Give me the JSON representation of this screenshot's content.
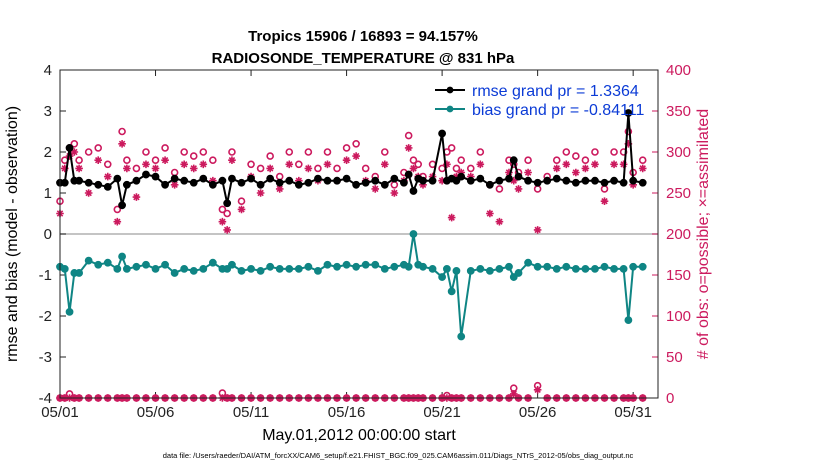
{
  "colors": {
    "rmse": "#000000",
    "bias": "#0f8584",
    "obs": "#cc1a5e",
    "legend_text": "#0b3bd6",
    "zero_line": "#b0b0b0"
  },
  "chart_data": {
    "type": "line",
    "title": "Tropics 15906 / 16893 = 94.157%",
    "subtitle": "RADIOSONDE_TEMPERATURE @ 831 hPa",
    "xlabel": "May.01,2012 00:00:00 start",
    "ylabel_left": "rmse and bias (model - observation)",
    "ylabel_right": "# of obs: o=possible; ×=assimilated",
    "xlim": [
      1,
      32.3
    ],
    "ylim_left": [
      -4,
      4
    ],
    "ylim_right": [
      0,
      400
    ],
    "xticks": [
      1,
      6,
      11,
      16,
      21,
      26,
      31
    ],
    "xtick_labels": [
      "05/01",
      "05/06",
      "05/11",
      "05/16",
      "05/21",
      "05/26",
      "05/31"
    ],
    "yticks_left": [
      -4,
      -3,
      -2,
      -1,
      0,
      1,
      2,
      3,
      4
    ],
    "yticks_right": [
      0,
      50,
      100,
      150,
      200,
      250,
      300,
      350,
      400
    ],
    "legend": [
      {
        "name": "rmse grand pr = 1.3364"
      },
      {
        "name": "bias grand pr = -0.84111"
      }
    ],
    "footer": "data file: /Users/raeder/DAI/ATM_forcXX/CAM6_setup/f.e21.FHIST_BGC.f09_025.CAM6assim.011/Diags_NTrS_2012-05/obs_diag_output.nc",
    "series": [
      {
        "name": "rmse",
        "x": [
          1.0,
          1.25,
          1.5,
          1.75,
          2.0,
          2.5,
          3.0,
          3.5,
          4.0,
          4.25,
          4.5,
          5.0,
          5.5,
          6.0,
          6.5,
          7.0,
          7.5,
          8.0,
          8.5,
          9.0,
          9.5,
          9.75,
          10.0,
          10.5,
          11.0,
          11.5,
          12.0,
          12.5,
          13.0,
          13.5,
          14.0,
          14.5,
          15.0,
          15.5,
          16.0,
          16.5,
          17.0,
          17.5,
          18.0,
          18.5,
          19.0,
          19.25,
          19.5,
          19.75,
          20.0,
          20.5,
          21.0,
          21.25,
          21.5,
          21.75,
          22.0,
          22.5,
          23.0,
          23.5,
          24.0,
          24.5,
          24.75,
          25.0,
          25.5,
          26.0,
          26.5,
          27.0,
          27.5,
          28.0,
          28.5,
          29.0,
          29.5,
          30.0,
          30.5,
          30.75,
          31.0,
          31.5
        ],
        "values": [
          1.25,
          1.25,
          2.1,
          1.3,
          1.3,
          1.25,
          1.2,
          1.15,
          1.35,
          0.7,
          1.2,
          1.3,
          1.45,
          1.4,
          1.2,
          1.35,
          1.3,
          1.25,
          1.35,
          1.2,
          1.3,
          0.75,
          1.35,
          1.25,
          1.35,
          1.2,
          1.35,
          1.25,
          1.3,
          1.2,
          1.25,
          1.35,
          1.3,
          1.3,
          1.35,
          1.2,
          1.25,
          1.3,
          1.2,
          1.35,
          1.25,
          1.45,
          1.05,
          1.35,
          1.3,
          1.3,
          2.45,
          1.3,
          1.35,
          1.3,
          1.4,
          1.3,
          1.35,
          1.2,
          1.3,
          1.35,
          1.8,
          1.4,
          1.3,
          1.25,
          1.3,
          1.35,
          1.3,
          1.25,
          1.3,
          1.3,
          1.25,
          1.3,
          1.25,
          2.95,
          1.3,
          1.25
        ]
      },
      {
        "name": "bias",
        "x": [
          1.0,
          1.25,
          1.5,
          1.75,
          2.0,
          2.5,
          3.0,
          3.5,
          4.0,
          4.25,
          4.5,
          5.0,
          5.5,
          6.0,
          6.5,
          7.0,
          7.5,
          8.0,
          8.5,
          9.0,
          9.5,
          9.75,
          10.0,
          10.5,
          11.0,
          11.5,
          12.0,
          12.5,
          13.0,
          13.5,
          14.0,
          14.5,
          15.0,
          15.5,
          16.0,
          16.5,
          17.0,
          17.5,
          18.0,
          18.5,
          19.0,
          19.25,
          19.5,
          19.75,
          20.0,
          20.5,
          21.0,
          21.25,
          21.5,
          21.75,
          22.0,
          22.5,
          23.0,
          23.5,
          24.0,
          24.5,
          24.75,
          25.0,
          25.5,
          26.0,
          26.5,
          27.0,
          27.5,
          28.0,
          28.5,
          29.0,
          29.5,
          30.0,
          30.5,
          30.75,
          31.0,
          31.5
        ],
        "values": [
          -0.8,
          -0.85,
          -1.9,
          -0.95,
          -0.95,
          -0.65,
          -0.75,
          -0.7,
          -0.85,
          -0.55,
          -0.85,
          -0.8,
          -0.75,
          -0.85,
          -0.75,
          -0.95,
          -0.85,
          -0.9,
          -0.85,
          -0.7,
          -0.85,
          -0.85,
          -0.75,
          -0.9,
          -0.85,
          -0.9,
          -0.8,
          -0.85,
          -0.85,
          -0.85,
          -0.8,
          -0.9,
          -0.75,
          -0.8,
          -0.75,
          -0.8,
          -0.75,
          -0.75,
          -0.85,
          -0.8,
          -0.75,
          -0.8,
          0.0,
          -0.75,
          -0.8,
          -0.85,
          -1.05,
          -0.85,
          -1.4,
          -0.9,
          -2.5,
          -0.9,
          -0.85,
          -0.9,
          -0.85,
          -0.8,
          -1.05,
          -0.95,
          -0.7,
          -0.8,
          -0.8,
          -0.85,
          -0.8,
          -0.85,
          -0.85,
          -0.85,
          -0.8,
          -0.85,
          -0.85,
          -2.1,
          -0.8,
          -0.8
        ]
      },
      {
        "name": "obs_possible",
        "axis": "right",
        "x": [
          1.0,
          1.25,
          1.5,
          1.75,
          2.0,
          2.5,
          3.0,
          3.5,
          4.0,
          4.25,
          4.5,
          5.0,
          5.5,
          6.0,
          6.5,
          7.0,
          7.5,
          8.0,
          8.5,
          9.0,
          9.5,
          9.75,
          10.0,
          10.5,
          11.0,
          11.5,
          12.0,
          12.5,
          13.0,
          13.5,
          14.0,
          14.5,
          15.0,
          15.5,
          16.0,
          16.5,
          17.0,
          17.5,
          18.0,
          18.5,
          19.0,
          19.25,
          19.5,
          19.75,
          20.0,
          20.5,
          21.0,
          21.25,
          21.5,
          21.75,
          22.0,
          22.5,
          23.0,
          23.5,
          24.0,
          24.5,
          24.75,
          25.0,
          25.5,
          26.0,
          26.5,
          27.0,
          27.5,
          28.0,
          28.5,
          29.0,
          29.5,
          30.0,
          30.5,
          30.75,
          31.0,
          31.5
        ],
        "values": [
          240,
          290,
          305,
          310,
          290,
          300,
          305,
          285,
          230,
          325,
          290,
          280,
          300,
          290,
          305,
          275,
          300,
          295,
          300,
          290,
          230,
          225,
          300,
          240,
          285,
          280,
          295,
          270,
          300,
          285,
          300,
          280,
          300,
          280,
          305,
          310,
          280,
          270,
          300,
          260,
          275,
          320,
          290,
          285,
          270,
          285,
          280,
          300,
          305,
          280,
          290,
          280,
          300,
          260,
          255,
          290,
          285,
          275,
          290,
          255,
          270,
          290,
          300,
          295,
          290,
          300,
          255,
          300,
          300,
          325,
          275,
          290
        ]
      },
      {
        "name": "obs_assimilated",
        "axis": "right",
        "x": [
          1.0,
          1.25,
          1.5,
          1.75,
          2.0,
          2.5,
          3.0,
          3.5,
          4.0,
          4.25,
          4.5,
          5.0,
          5.5,
          6.0,
          6.5,
          7.0,
          7.5,
          8.0,
          8.5,
          9.0,
          9.5,
          9.75,
          10.0,
          10.5,
          11.0,
          11.5,
          12.0,
          12.5,
          13.0,
          13.5,
          14.0,
          14.5,
          15.0,
          15.5,
          16.0,
          16.5,
          17.0,
          17.5,
          18.0,
          18.5,
          19.0,
          19.25,
          19.5,
          19.75,
          20.0,
          20.5,
          21.0,
          21.25,
          21.5,
          21.75,
          22.0,
          22.5,
          23.0,
          23.5,
          24.0,
          24.5,
          24.75,
          25.0,
          25.5,
          26.0,
          26.5,
          27.0,
          27.5,
          28.0,
          28.5,
          29.0,
          29.5,
          30.0,
          30.5,
          30.75,
          31.0,
          31.5
        ],
        "values": [
          225,
          280,
          295,
          300,
          280,
          250,
          290,
          270,
          215,
          310,
          280,
          245,
          285,
          280,
          290,
          260,
          285,
          280,
          285,
          265,
          215,
          205,
          290,
          230,
          270,
          250,
          280,
          255,
          285,
          265,
          280,
          265,
          285,
          265,
          290,
          295,
          265,
          255,
          285,
          250,
          265,
          305,
          280,
          270,
          260,
          270,
          265,
          285,
          220,
          270,
          275,
          270,
          285,
          225,
          215,
          275,
          265,
          255,
          275,
          205,
          265,
          280,
          285,
          275,
          280,
          285,
          240,
          285,
          285,
          310,
          260,
          280
        ]
      },
      {
        "name": "obs_bottom_possible",
        "axis": "right",
        "x": [
          1.0,
          1.25,
          1.5,
          1.75,
          2.0,
          2.5,
          3.0,
          3.5,
          4.0,
          4.25,
          4.5,
          5.0,
          5.5,
          6.0,
          6.5,
          7.0,
          7.5,
          8.0,
          8.5,
          9.0,
          9.5,
          9.75,
          10.0,
          10.5,
          11.0,
          11.5,
          12.0,
          12.5,
          13.0,
          13.5,
          14.0,
          14.5,
          15.0,
          15.5,
          16.0,
          16.5,
          17.0,
          17.5,
          18.0,
          18.5,
          19.0,
          19.25,
          19.5,
          19.75,
          20.0,
          20.5,
          21.0,
          21.25,
          21.5,
          21.75,
          22.0,
          22.5,
          23.0,
          23.5,
          24.0,
          24.5,
          24.75,
          25.0,
          25.5,
          26.0,
          26.5,
          27.0,
          27.5,
          28.0,
          28.5,
          29.0,
          29.5,
          30.0,
          30.5,
          30.75,
          31.0,
          31.5
        ],
        "values": [
          0,
          0,
          5,
          0,
          0,
          0,
          0,
          0,
          0,
          0,
          0,
          0,
          0,
          0,
          0,
          0,
          0,
          0,
          0,
          0,
          6,
          0,
          0,
          0,
          0,
          0,
          0,
          0,
          0,
          0,
          0,
          0,
          0,
          0,
          0,
          0,
          0,
          0,
          0,
          0,
          0,
          0,
          0,
          0,
          0,
          0,
          0,
          3,
          0,
          0,
          0,
          0,
          0,
          0,
          0,
          0,
          12,
          0,
          0,
          15,
          0,
          0,
          0,
          0,
          0,
          0,
          0,
          0,
          0,
          0,
          0,
          0
        ]
      },
      {
        "name": "obs_bottom_assimilated",
        "axis": "right",
        "x": [
          1.0,
          1.25,
          1.5,
          1.75,
          2.0,
          2.5,
          3.0,
          3.5,
          4.0,
          4.25,
          4.5,
          5.0,
          5.5,
          6.0,
          6.5,
          7.0,
          7.5,
          8.0,
          8.5,
          9.0,
          9.5,
          9.75,
          10.0,
          10.5,
          11.0,
          11.5,
          12.0,
          12.5,
          13.0,
          13.5,
          14.0,
          14.5,
          15.0,
          15.5,
          16.0,
          16.5,
          17.0,
          17.5,
          18.0,
          18.5,
          19.0,
          19.25,
          19.5,
          19.75,
          20.0,
          20.5,
          21.0,
          21.25,
          21.5,
          21.75,
          22.0,
          22.5,
          23.0,
          23.5,
          24.0,
          24.5,
          24.75,
          25.0,
          25.5,
          26.0,
          26.5,
          27.0,
          27.5,
          28.0,
          28.5,
          29.0,
          29.5,
          30.0,
          30.5,
          30.75,
          31.0,
          31.5
        ],
        "values": [
          0,
          0,
          0,
          0,
          0,
          0,
          0,
          0,
          0,
          0,
          0,
          0,
          0,
          0,
          0,
          0,
          0,
          0,
          0,
          0,
          0,
          0,
          0,
          0,
          0,
          0,
          0,
          0,
          0,
          0,
          0,
          0,
          0,
          0,
          0,
          0,
          0,
          0,
          0,
          0,
          0,
          0,
          0,
          0,
          0,
          0,
          0,
          0,
          0,
          0,
          0,
          0,
          0,
          0,
          0,
          0,
          5,
          0,
          0,
          10,
          0,
          0,
          0,
          0,
          0,
          0,
          0,
          0,
          0,
          0,
          0,
          0
        ]
      }
    ]
  }
}
